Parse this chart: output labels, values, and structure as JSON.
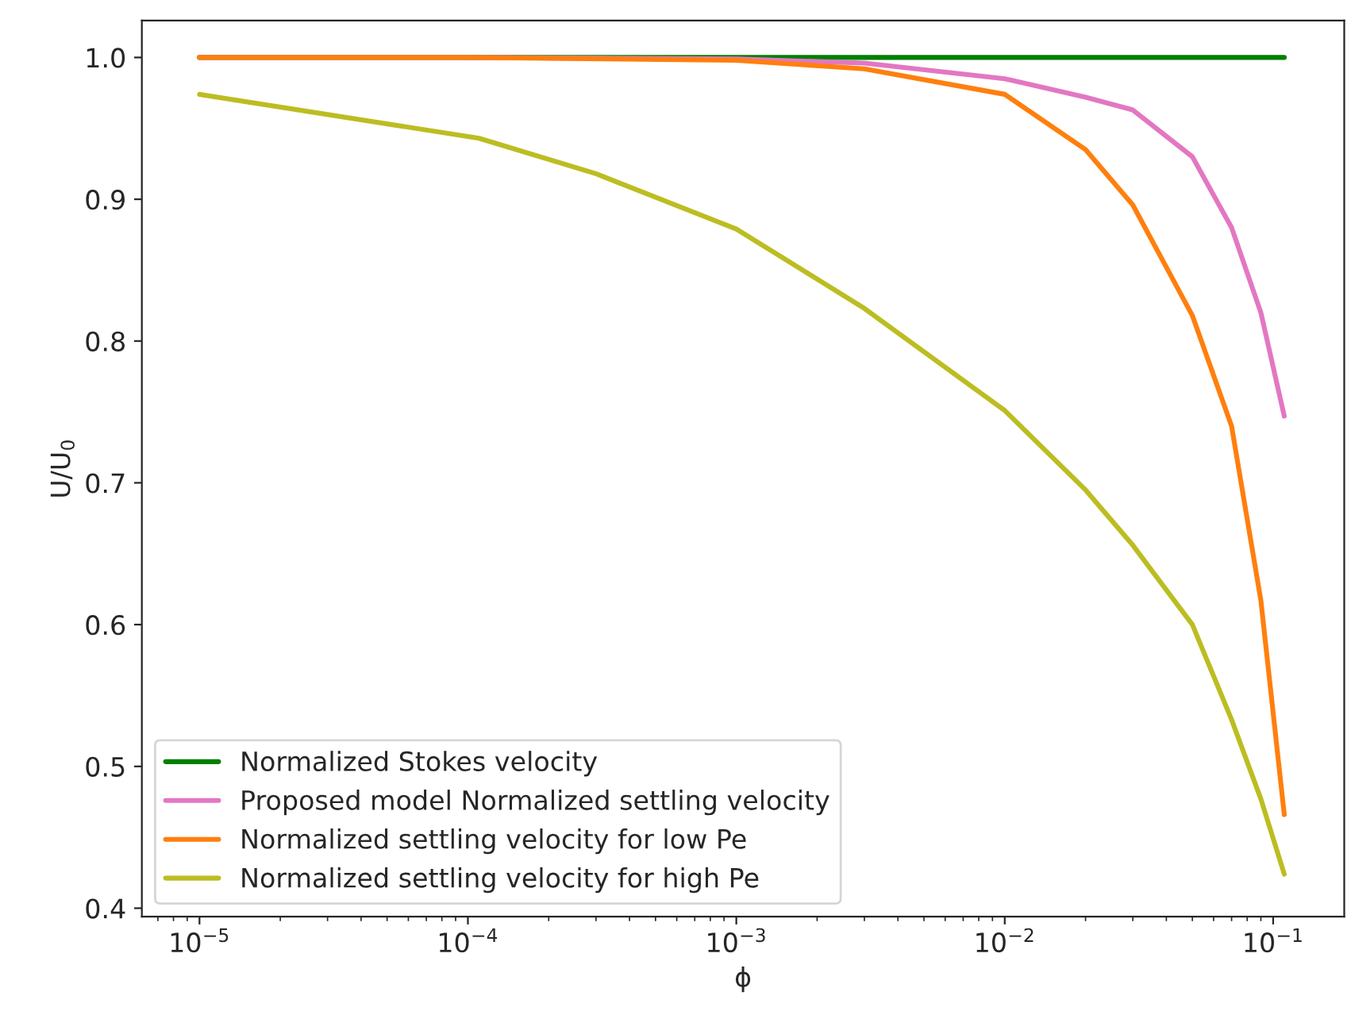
{
  "chart_data": {
    "type": "line",
    "xlabel": "ϕ",
    "ylabel": "U/U$_{0}$",
    "log": "x",
    "grid": false,
    "legend": "bottom left",
    "xlim": [
      6.1e-06,
      0.184
    ],
    "ylim": [
      0.394,
      1.026
    ],
    "xticks": [
      {
        "value": 1e-05,
        "label": "10$^{−5}$"
      },
      {
        "value": 0.0001,
        "label": "10$^{−4}$"
      },
      {
        "value": 0.001,
        "label": "10$^{−3}$"
      },
      {
        "value": 0.01,
        "label": "10$^{−2}$"
      },
      {
        "value": 0.1,
        "label": "10$^{−1}$"
      }
    ],
    "yticks": [
      {
        "value": 0.4,
        "label": "0.4"
      },
      {
        "value": 0.5,
        "label": "0.5"
      },
      {
        "value": 0.6,
        "label": "0.6"
      },
      {
        "value": 0.7,
        "label": "0.7"
      },
      {
        "value": 0.8,
        "label": "0.8"
      },
      {
        "value": 0.9,
        "label": "0.9"
      },
      {
        "value": 1.0,
        "label": "1.0"
      }
    ],
    "series": [
      {
        "name": "Normalized Stokes velocity",
        "color": "#008000",
        "x": [
          1e-05,
          0.11
        ],
        "values": [
          1.0,
          1.0
        ]
      },
      {
        "name": "Proposed model Normalized settling velocity",
        "color": "#e377c2",
        "x": [
          1e-05,
          0.0001,
          0.001,
          0.003,
          0.01,
          0.02,
          0.03,
          0.05,
          0.07,
          0.09,
          0.11
        ],
        "values": [
          1.0,
          1.0,
          0.999,
          0.996,
          0.985,
          0.972,
          0.963,
          0.93,
          0.88,
          0.82,
          0.747
        ]
      },
      {
        "name": "Normalized settling velocity for low Pe",
        "color": "#ff7f0e",
        "x": [
          1e-05,
          0.0001,
          0.001,
          0.003,
          0.01,
          0.02,
          0.03,
          0.05,
          0.07,
          0.09,
          0.11
        ],
        "values": [
          1.0,
          1.0,
          0.998,
          0.992,
          0.974,
          0.935,
          0.896,
          0.818,
          0.74,
          0.617,
          0.466
        ]
      },
      {
        "name": "Normalized settling velocity for high Pe",
        "color": "#bcbd22",
        "x": [
          1e-05,
          0.00011,
          0.0003,
          0.001,
          0.003,
          0.01,
          0.02,
          0.03,
          0.05,
          0.07,
          0.09,
          0.11
        ],
        "values": [
          0.974,
          0.943,
          0.918,
          0.879,
          0.823,
          0.751,
          0.695,
          0.656,
          0.6,
          0.533,
          0.477,
          0.424
        ]
      }
    ]
  }
}
